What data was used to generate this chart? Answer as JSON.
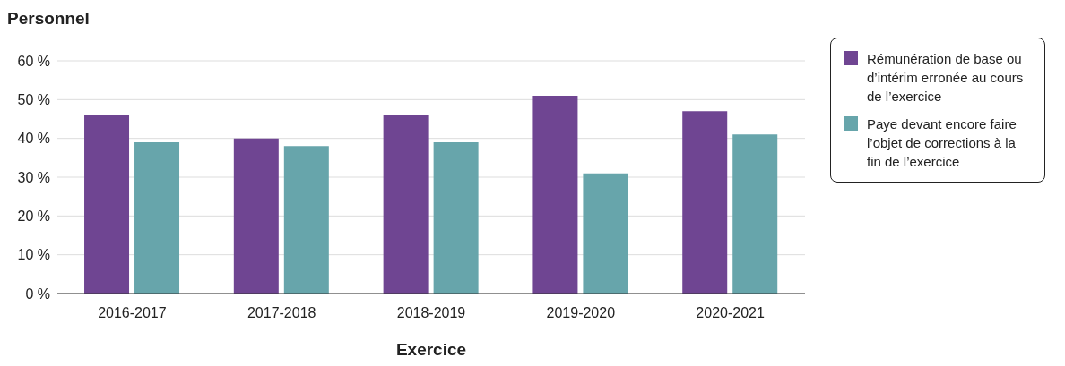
{
  "chart_data": {
    "type": "bar",
    "ylabel": "Personnel",
    "xlabel": "Exercice",
    "categories": [
      "2016-2017",
      "2017-2018",
      "2018-2019",
      "2019-2020",
      "2020-2021"
    ],
    "series": [
      {
        "name": "Rémunération de base ou d’intérim erronée au cours de l’exercice",
        "color": "#6f4592",
        "values": [
          46,
          40,
          46,
          51,
          47
        ]
      },
      {
        "name": "Paye devant encore faire l’objet de corrections à la fin de l’exercice",
        "color": "#67a5ab",
        "values": [
          39,
          38,
          39,
          31,
          41
        ]
      }
    ],
    "ylim": [
      0,
      60
    ],
    "yticks": [
      {
        "value": 0,
        "label": "0 %"
      },
      {
        "value": 10,
        "label": "10 %"
      },
      {
        "value": 20,
        "label": "20 %"
      },
      {
        "value": 30,
        "label": "30 %"
      },
      {
        "value": 40,
        "label": "40 %"
      },
      {
        "value": 50,
        "label": "50 %"
      },
      {
        "value": 60,
        "label": "60 %"
      }
    ],
    "grid": "y",
    "legend": "top right"
  }
}
